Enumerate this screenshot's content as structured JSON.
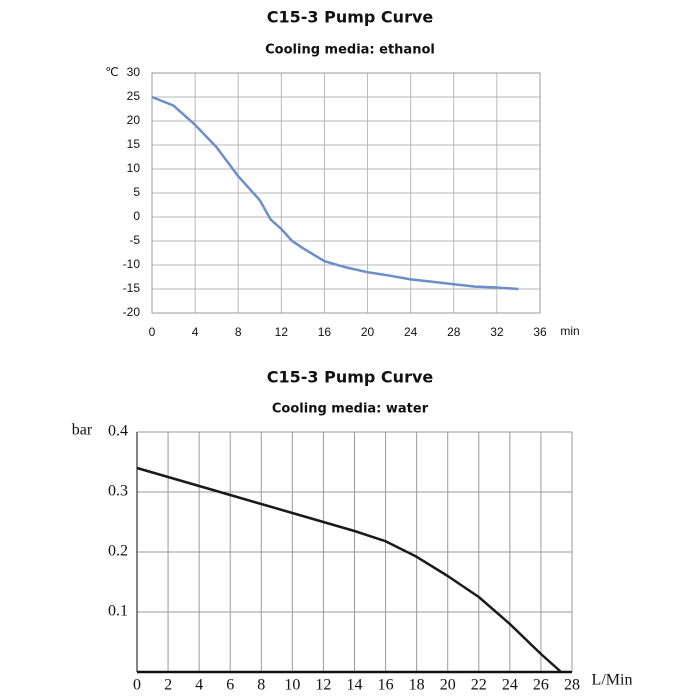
{
  "chart_data": [
    {
      "type": "line",
      "title": "C15-3 Pump Curve",
      "subtitle": "Cooling media: ethanol",
      "y_label": "℃",
      "x_label": "min",
      "x": [
        0,
        2,
        4,
        6,
        8,
        10,
        11,
        12,
        13,
        14,
        16,
        18,
        20,
        22,
        24,
        26,
        28,
        30,
        32,
        34
      ],
      "values": [
        25,
        23.2,
        19.2,
        14.5,
        8.5,
        3.5,
        -0.5,
        -2.5,
        -5,
        -6.5,
        -9.2,
        -10.5,
        -11.5,
        -12.2,
        -13,
        -13.5,
        -14,
        -14.5,
        -14.7,
        -15
      ],
      "color": "#6b8fc6",
      "xlim": [
        0,
        36
      ],
      "xticks": [
        0,
        4,
        8,
        12,
        16,
        20,
        24,
        28,
        32,
        36
      ],
      "ylim": [
        -20,
        30
      ],
      "yticks": [
        -20,
        -15,
        -10,
        -5,
        0,
        5,
        10,
        15,
        20,
        25,
        30
      ],
      "grid": true
    },
    {
      "type": "line",
      "title": "C15-3 Pump Curve",
      "subtitle": "Cooling media: water",
      "y_label": "bar",
      "x_label": "L/Min",
      "x": [
        0,
        2,
        4,
        6,
        8,
        10,
        12,
        14,
        16,
        18,
        20,
        22,
        24,
        26,
        27.3
      ],
      "values": [
        0.34,
        0.325,
        0.31,
        0.295,
        0.28,
        0.265,
        0.25,
        0.235,
        0.218,
        0.192,
        0.16,
        0.125,
        0.08,
        0.03,
        0
      ],
      "color": "#1a1a1a",
      "xlim": [
        0,
        28
      ],
      "xticks": [
        0,
        2,
        4,
        6,
        8,
        10,
        12,
        14,
        16,
        18,
        20,
        22,
        24,
        26,
        28
      ],
      "ylim": [
        0,
        0.4
      ],
      "yticks": [
        0.1,
        0.2,
        0.3,
        0.4
      ],
      "grid": true
    }
  ]
}
